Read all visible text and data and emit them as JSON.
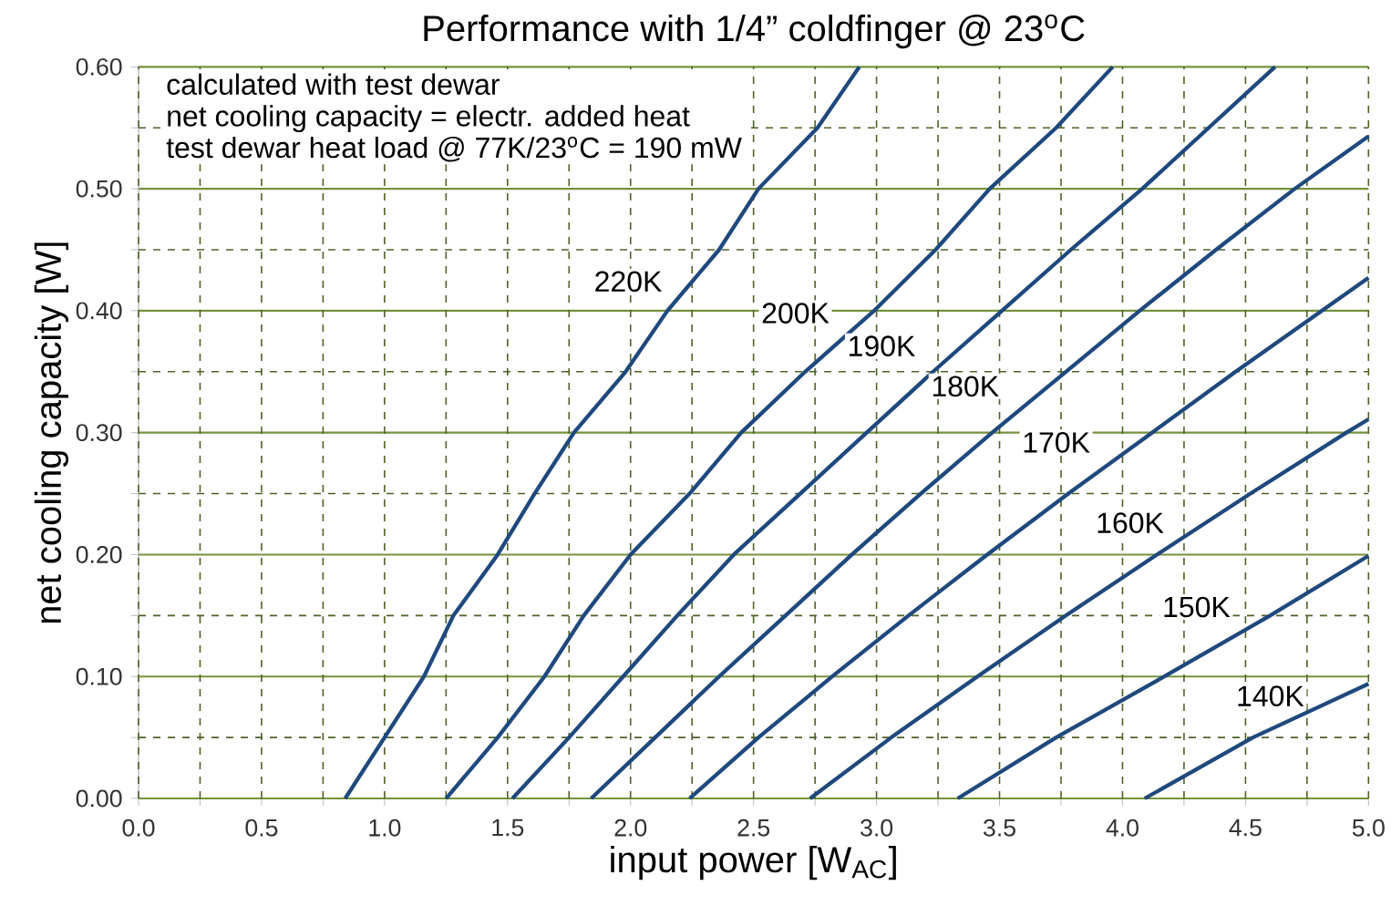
{
  "chart_data": {
    "type": "line",
    "title": "Performance with 1/4” coldfinger @ 23$^{o}$C",
    "xlabel": "input power [W$_{AC}$]",
    "ylabel": "net cooling capacity [W]",
    "series": [
      {
        "color": "#1f497d",
        "x": [
          0.84,
          1.0,
          1.16,
          1.28,
          1.46,
          1.61,
          1.77,
          1.98,
          2.15,
          2.36,
          2.52,
          2.76,
          2.93
        ],
        "values": [
          0,
          0.05,
          0.1,
          0.15,
          0.2,
          0.25,
          0.3,
          0.35,
          0.4,
          0.45,
          0.5,
          0.55,
          0.6
        ]
      },
      {
        "color": "#1f497d",
        "x": [
          1.25,
          1.46,
          1.65,
          1.81,
          2.0,
          2.24,
          2.45,
          2.71,
          2.99,
          3.24,
          3.46,
          3.73,
          3.96
        ],
        "values": [
          0,
          0.05,
          0.1,
          0.15,
          0.2,
          0.25,
          0.3,
          0.35,
          0.4,
          0.45,
          0.5,
          0.55,
          0.6
        ]
      },
      {
        "color": "#1f497d",
        "x": [
          1.52,
          1.75,
          1.97,
          2.19,
          2.42,
          2.69,
          2.96,
          3.23,
          3.51,
          3.79,
          4.08,
          4.35,
          4.62
        ],
        "values": [
          0,
          0.05,
          0.1,
          0.15,
          0.2,
          0.25,
          0.3,
          0.35,
          0.4,
          0.45,
          0.5,
          0.55,
          0.6
        ]
      },
      {
        "color": "#1f497d",
        "x": [
          1.84,
          2.1,
          2.36,
          2.63,
          2.9,
          3.18,
          3.47,
          3.77,
          4.07,
          4.38,
          4.7,
          5.0
        ],
        "values": [
          0,
          0.05,
          0.1,
          0.15,
          0.2,
          0.25,
          0.3,
          0.35,
          0.4,
          0.45,
          0.5,
          0.543
        ]
      },
      {
        "color": "#1f497d",
        "x": [
          2.24,
          2.52,
          2.82,
          3.13,
          3.45,
          3.78,
          4.12,
          4.46,
          4.81,
          5.0
        ],
        "values": [
          0,
          0.05,
          0.1,
          0.15,
          0.2,
          0.25,
          0.3,
          0.35,
          0.4,
          0.427
        ]
      },
      {
        "color": "#1f497d",
        "x": [
          2.73,
          3.06,
          3.41,
          3.77,
          4.14,
          4.52,
          4.91,
          5.0
        ],
        "values": [
          0,
          0.05,
          0.1,
          0.15,
          0.2,
          0.25,
          0.3,
          0.311
        ]
      },
      {
        "color": "#1f497d",
        "x": [
          3.33,
          3.73,
          4.17,
          4.6,
          5.0
        ],
        "values": [
          0,
          0.05,
          0.1,
          0.15,
          0.199
        ]
      },
      {
        "color": "#1f497d",
        "x": [
          4.09,
          4.53,
          5.0
        ],
        "values": [
          0,
          0.05,
          0.094
        ]
      }
    ],
    "xlim": [
      0,
      5
    ],
    "ylim": [
      0,
      0.6
    ],
    "xticks": [
      {
        "value": 0,
        "label": "0.0"
      },
      {
        "value": 0.25,
        "label": null
      },
      0.5,
      {
        "value": 0.75,
        "label": null
      },
      {
        "value": 1,
        "label": "1.0"
      },
      {
        "value": 1.25,
        "label": null
      },
      1.5,
      {
        "value": 1.75,
        "label": null
      },
      {
        "value": 2,
        "label": "2.0"
      },
      {
        "value": 2.25,
        "label": null
      },
      2.5,
      {
        "value": 2.75,
        "label": null
      },
      {
        "value": 3,
        "label": "3.0"
      },
      {
        "value": 3.25,
        "label": null
      },
      3.5,
      {
        "value": 3.75,
        "label": null
      },
      {
        "value": 4,
        "label": "4.0"
      },
      {
        "value": 4.25,
        "label": null
      },
      4.5,
      {
        "value": 4.75,
        "label": null
      },
      {
        "value": 5,
        "label": "5.0"
      }
    ],
    "yticks": [
      {
        "value": 0,
        "label": "0.00"
      },
      {
        "value": 0.05,
        "label": null
      },
      {
        "value": 0.1,
        "label": "0.10"
      },
      {
        "value": 0.15,
        "label": null
      },
      {
        "value": 0.2,
        "label": "0.20"
      },
      {
        "value": 0.25,
        "label": null
      },
      {
        "value": 0.3,
        "label": "0.30"
      },
      {
        "value": 0.35,
        "label": null
      },
      {
        "value": 0.4,
        "label": "0.40"
      },
      {
        "value": 0.45,
        "label": null
      },
      {
        "value": 0.5,
        "label": "0.50"
      },
      {
        "value": 0.55,
        "label": null
      },
      {
        "value": 0.6,
        "label": "0.60"
      }
    ],
    "grid": true,
    "marker": "none",
    "line_style": "solid",
    "annotations": [
      "calculated with test dewar",
      "net cooling capacity = electr. added heat",
      "test dewar heat load @ 77K/23$^{o}$C = 190 mW",
      {
        "text": "220K",
        "x": 1.99,
        "y": 0.424
      },
      {
        "text": "200K",
        "x": 2.67,
        "y": 0.398
      },
      {
        "text": "190K",
        "x": 3.02,
        "y": 0.371
      },
      {
        "text": "180K",
        "x": 3.36,
        "y": 0.338
      },
      {
        "text": "170K",
        "x": 3.73,
        "y": 0.292
      },
      {
        "text": "160K",
        "x": 4.03,
        "y": 0.226
      },
      {
        "text": "150K",
        "x": 4.3,
        "y": 0.157
      },
      {
        "text": "140K",
        "x": 4.6,
        "y": 0.084
      }
    ]
  }
}
